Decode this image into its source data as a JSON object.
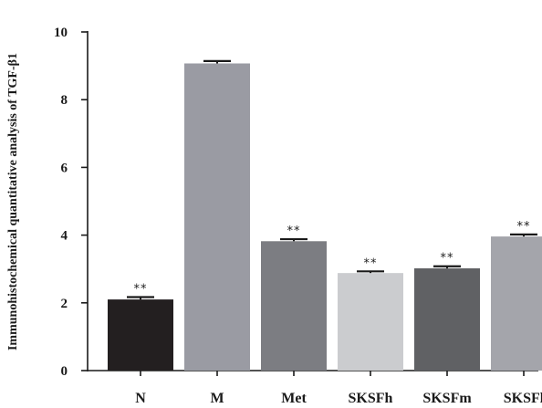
{
  "chart_data": {
    "type": "bar",
    "title": "",
    "xlabel": "",
    "ylabel": "Immunohistochemical quantitative analysis of TGF-β1",
    "ylim": [
      0,
      10
    ],
    "yticks": [
      0,
      2,
      4,
      6,
      8,
      10
    ],
    "grid": false,
    "categories": [
      "N",
      "M",
      "Met",
      "SKSFh",
      "SKSFm",
      "SKSFl"
    ],
    "values": [
      2.1,
      9.07,
      3.82,
      2.88,
      3.02,
      3.96
    ],
    "errors": [
      0.07,
      0.07,
      0.06,
      0.05,
      0.06,
      0.06
    ],
    "significance": [
      "**",
      "",
      "**",
      "**",
      "**",
      "**"
    ],
    "colors": [
      "#231f20",
      "#9a9ba3",
      "#7c7d82",
      "#cbcccf",
      "#606164",
      "#a4a5ab"
    ]
  }
}
